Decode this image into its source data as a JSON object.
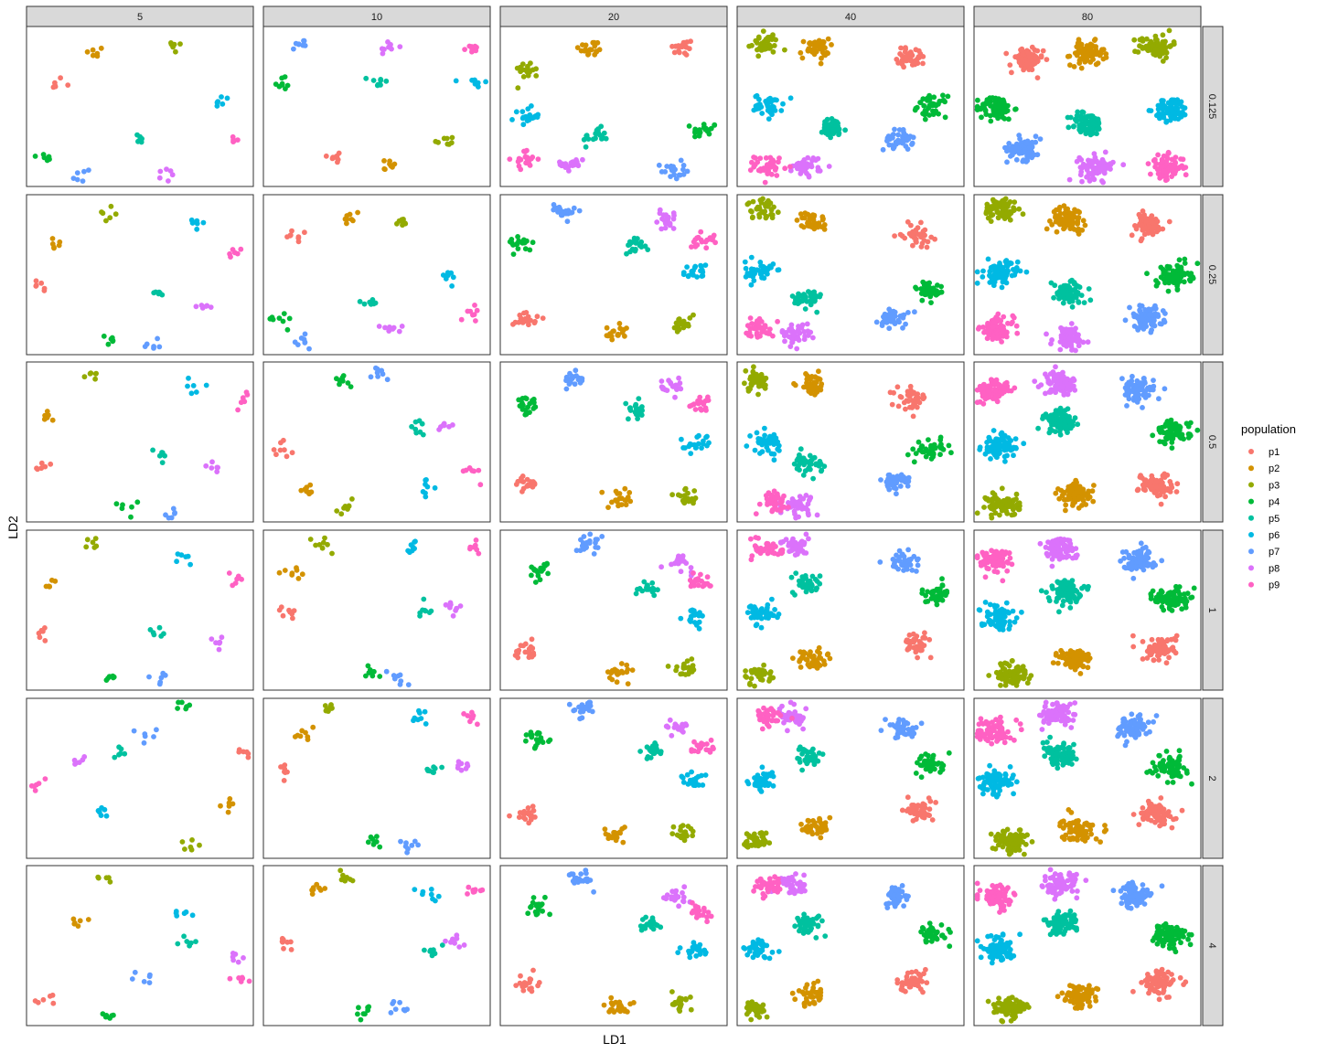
{
  "chart_data": {
    "type": "scatter",
    "facet_columns": [
      "5",
      "10",
      "20",
      "40",
      "80"
    ],
    "facet_rows": [
      "0.125",
      "0.25",
      "0.5",
      "1",
      "2",
      "4"
    ],
    "xlabel": "LD1",
    "ylabel": "LD2",
    "legend": {
      "title": "population",
      "position": "right",
      "entries": [
        "p1",
        "p2",
        "p3",
        "p4",
        "p5",
        "p6",
        "p7",
        "p8",
        "p9"
      ]
    },
    "colors": {
      "p1": "#F8766D",
      "p2": "#D39200",
      "p3": "#93AA00",
      "p4": "#00BA38",
      "p5": "#00C19F",
      "p6": "#00B9E3",
      "p7": "#619CFF",
      "p8": "#DB72FB",
      "p9": "#FF61C3"
    },
    "xlim": [
      0,
      1
    ],
    "ylim": [
      0,
      1
    ],
    "grid": false,
    "cluster_centers": [
      [
        {
          "p1": [
            0.12,
            0.65
          ],
          "p2": [
            0.3,
            0.83
          ],
          "p3": [
            0.65,
            0.88
          ],
          "p4": [
            0.08,
            0.18
          ],
          "p5": [
            0.5,
            0.29
          ],
          "p6": [
            0.86,
            0.53
          ],
          "p7": [
            0.24,
            0.07
          ],
          "p8": [
            0.62,
            0.07
          ],
          "p9": [
            0.94,
            0.28
          ]
        },
        {
          "p1": [
            0.32,
            0.19
          ],
          "p2": [
            0.55,
            0.13
          ],
          "p3": [
            0.8,
            0.29
          ],
          "p4": [
            0.08,
            0.65
          ],
          "p5": [
            0.51,
            0.65
          ],
          "p6": [
            0.94,
            0.65
          ],
          "p7": [
            0.16,
            0.89
          ],
          "p8": [
            0.55,
            0.87
          ],
          "p9": [
            0.92,
            0.86
          ]
        },
        {
          "p1": [
            0.8,
            0.87
          ],
          "p2": [
            0.4,
            0.86
          ],
          "p3": [
            0.12,
            0.73
          ],
          "p4": [
            0.9,
            0.35
          ],
          "p5": [
            0.42,
            0.31
          ],
          "p6": [
            0.12,
            0.44
          ],
          "p7": [
            0.76,
            0.1
          ],
          "p8": [
            0.32,
            0.14
          ],
          "p9": [
            0.11,
            0.17
          ]
        },
        {
          "p1": [
            0.77,
            0.81
          ],
          "p2": [
            0.34,
            0.86
          ],
          "p3": [
            0.12,
            0.89
          ],
          "p4": [
            0.86,
            0.5
          ],
          "p5": [
            0.42,
            0.36
          ],
          "p6": [
            0.14,
            0.51
          ],
          "p7": [
            0.71,
            0.29
          ],
          "p8": [
            0.31,
            0.13
          ],
          "p9": [
            0.14,
            0.13
          ]
        },
        {
          "p1": [
            0.23,
            0.79
          ],
          "p2": [
            0.5,
            0.83
          ],
          "p3": [
            0.8,
            0.88
          ],
          "p4": [
            0.1,
            0.49
          ],
          "p5": [
            0.5,
            0.39
          ],
          "p6": [
            0.87,
            0.48
          ],
          "p7": [
            0.22,
            0.24
          ],
          "p8": [
            0.54,
            0.12
          ],
          "p9": [
            0.85,
            0.12
          ]
        }
      ],
      [
        {
          "p1": [
            0.07,
            0.42
          ],
          "p2": [
            0.12,
            0.71
          ],
          "p3": [
            0.36,
            0.89
          ],
          "p4": [
            0.37,
            0.08
          ],
          "p5": [
            0.57,
            0.38
          ],
          "p6": [
            0.74,
            0.81
          ],
          "p7": [
            0.56,
            0.06
          ],
          "p8": [
            0.78,
            0.3
          ],
          "p9": [
            0.93,
            0.65
          ]
        },
        {
          "p1": [
            0.15,
            0.74
          ],
          "p2": [
            0.38,
            0.86
          ],
          "p3": [
            0.6,
            0.84
          ],
          "p4": [
            0.06,
            0.22
          ],
          "p5": [
            0.48,
            0.33
          ],
          "p6": [
            0.81,
            0.48
          ],
          "p7": [
            0.17,
            0.07
          ],
          "p8": [
            0.56,
            0.17
          ],
          "p9": [
            0.94,
            0.26
          ]
        },
        {
          "p1": [
            0.11,
            0.23
          ],
          "p2": [
            0.51,
            0.13
          ],
          "p3": [
            0.81,
            0.18
          ],
          "p4": [
            0.09,
            0.7
          ],
          "p5": [
            0.6,
            0.69
          ],
          "p6": [
            0.86,
            0.51
          ],
          "p7": [
            0.28,
            0.9
          ],
          "p8": [
            0.73,
            0.84
          ],
          "p9": [
            0.89,
            0.72
          ]
        },
        {
          "p1": [
            0.79,
            0.75
          ],
          "p2": [
            0.33,
            0.83
          ],
          "p3": [
            0.11,
            0.91
          ],
          "p4": [
            0.85,
            0.4
          ],
          "p5": [
            0.31,
            0.35
          ],
          "p6": [
            0.1,
            0.52
          ],
          "p7": [
            0.69,
            0.23
          ],
          "p8": [
            0.26,
            0.13
          ],
          "p9": [
            0.1,
            0.17
          ]
        },
        {
          "p1": [
            0.76,
            0.81
          ],
          "p2": [
            0.42,
            0.85
          ],
          "p3": [
            0.12,
            0.91
          ],
          "p4": [
            0.88,
            0.49
          ],
          "p5": [
            0.42,
            0.39
          ],
          "p6": [
            0.12,
            0.51
          ],
          "p7": [
            0.76,
            0.23
          ],
          "p8": [
            0.42,
            0.1
          ],
          "p9": [
            0.1,
            0.16
          ]
        }
      ],
      [
        {
          "p1": [
            0.07,
            0.34
          ],
          "p2": [
            0.09,
            0.65
          ],
          "p3": [
            0.29,
            0.91
          ],
          "p4": [
            0.44,
            0.1
          ],
          "p5": [
            0.59,
            0.42
          ],
          "p6": [
            0.74,
            0.85
          ],
          "p7": [
            0.63,
            0.06
          ],
          "p8": [
            0.84,
            0.35
          ],
          "p9": [
            0.95,
            0.76
          ]
        },
        {
          "p1": [
            0.08,
            0.45
          ],
          "p2": [
            0.19,
            0.19
          ],
          "p3": [
            0.35,
            0.08
          ],
          "p4": [
            0.35,
            0.88
          ],
          "p5": [
            0.67,
            0.59
          ],
          "p6": [
            0.72,
            0.22
          ],
          "p7": [
            0.53,
            0.93
          ],
          "p8": [
            0.8,
            0.6
          ],
          "p9": [
            0.92,
            0.31
          ]
        },
        {
          "p1": [
            0.11,
            0.24
          ],
          "p2": [
            0.53,
            0.14
          ],
          "p3": [
            0.82,
            0.15
          ],
          "p4": [
            0.12,
            0.72
          ],
          "p5": [
            0.6,
            0.69
          ],
          "p6": [
            0.87,
            0.49
          ],
          "p7": [
            0.32,
            0.89
          ],
          "p8": [
            0.76,
            0.85
          ],
          "p9": [
            0.89,
            0.73
          ]
        },
        {
          "p1": [
            0.77,
            0.77
          ],
          "p2": [
            0.33,
            0.86
          ],
          "p3": [
            0.08,
            0.88
          ],
          "p4": [
            0.86,
            0.45
          ],
          "p5": [
            0.31,
            0.36
          ],
          "p6": [
            0.13,
            0.5
          ],
          "p7": [
            0.7,
            0.25
          ],
          "p8": [
            0.27,
            0.11
          ],
          "p9": [
            0.16,
            0.13
          ]
        },
        {
          "p1": [
            0.8,
            0.23
          ],
          "p2": [
            0.45,
            0.17
          ],
          "p3": [
            0.13,
            0.11
          ],
          "p4": [
            0.88,
            0.56
          ],
          "p5": [
            0.38,
            0.63
          ],
          "p6": [
            0.11,
            0.47
          ],
          "p7": [
            0.72,
            0.82
          ],
          "p8": [
            0.38,
            0.87
          ],
          "p9": [
            0.09,
            0.82
          ]
        }
      ],
      [
        {
          "p1": [
            0.07,
            0.36
          ],
          "p2": [
            0.11,
            0.65
          ],
          "p3": [
            0.29,
            0.91
          ],
          "p4": [
            0.37,
            0.09
          ],
          "p5": [
            0.58,
            0.37
          ],
          "p6": [
            0.68,
            0.82
          ],
          "p7": [
            0.58,
            0.07
          ],
          "p8": [
            0.84,
            0.31
          ],
          "p9": [
            0.94,
            0.7
          ]
        },
        {
          "p1": [
            0.1,
            0.49
          ],
          "p2": [
            0.13,
            0.74
          ],
          "p3": [
            0.25,
            0.91
          ],
          "p4": [
            0.47,
            0.11
          ],
          "p5": [
            0.71,
            0.5
          ],
          "p6": [
            0.66,
            0.89
          ],
          "p7": [
            0.6,
            0.08
          ],
          "p8": [
            0.83,
            0.51
          ],
          "p9": [
            0.92,
            0.88
          ]
        },
        {
          "p1": [
            0.12,
            0.25
          ],
          "p2": [
            0.52,
            0.12
          ],
          "p3": [
            0.82,
            0.14
          ],
          "p4": [
            0.18,
            0.75
          ],
          "p5": [
            0.66,
            0.64
          ],
          "p6": [
            0.86,
            0.46
          ],
          "p7": [
            0.39,
            0.92
          ],
          "p8": [
            0.79,
            0.79
          ],
          "p9": [
            0.88,
            0.68
          ]
        },
        {
          "p1": [
            0.79,
            0.29
          ],
          "p2": [
            0.33,
            0.19
          ],
          "p3": [
            0.09,
            0.1
          ],
          "p4": [
            0.88,
            0.59
          ],
          "p5": [
            0.31,
            0.67
          ],
          "p6": [
            0.11,
            0.48
          ],
          "p7": [
            0.73,
            0.8
          ],
          "p8": [
            0.25,
            0.9
          ],
          "p9": [
            0.14,
            0.88
          ]
        },
        {
          "p1": [
            0.82,
            0.26
          ],
          "p2": [
            0.45,
            0.19
          ],
          "p3": [
            0.17,
            0.1
          ],
          "p4": [
            0.87,
            0.57
          ],
          "p5": [
            0.4,
            0.62
          ],
          "p6": [
            0.1,
            0.46
          ],
          "p7": [
            0.73,
            0.81
          ],
          "p8": [
            0.37,
            0.89
          ],
          "p9": [
            0.09,
            0.81
          ]
        }
      ],
      [
        {
          "p1": [
            0.95,
            0.66
          ],
          "p2": [
            0.9,
            0.35
          ],
          "p3": [
            0.72,
            0.09
          ],
          "p4": [
            0.7,
            0.95
          ],
          "p5": [
            0.41,
            0.66
          ],
          "p6": [
            0.34,
            0.3
          ],
          "p7": [
            0.53,
            0.77
          ],
          "p8": [
            0.22,
            0.6
          ],
          "p9": [
            0.05,
            0.46
          ]
        },
        {
          "p1": [
            0.1,
            0.54
          ],
          "p2": [
            0.17,
            0.78
          ],
          "p3": [
            0.3,
            0.94
          ],
          "p4": [
            0.48,
            0.11
          ],
          "p5": [
            0.74,
            0.55
          ],
          "p6": [
            0.69,
            0.89
          ],
          "p7": [
            0.64,
            0.08
          ],
          "p8": [
            0.86,
            0.57
          ],
          "p9": [
            0.92,
            0.89
          ]
        },
        {
          "p1": [
            0.12,
            0.27
          ],
          "p2": [
            0.51,
            0.15
          ],
          "p3": [
            0.81,
            0.15
          ],
          "p4": [
            0.17,
            0.74
          ],
          "p5": [
            0.67,
            0.67
          ],
          "p6": [
            0.85,
            0.49
          ],
          "p7": [
            0.36,
            0.93
          ],
          "p8": [
            0.78,
            0.82
          ],
          "p9": [
            0.89,
            0.69
          ]
        },
        {
          "p1": [
            0.8,
            0.3
          ],
          "p2": [
            0.35,
            0.2
          ],
          "p3": [
            0.09,
            0.11
          ],
          "p4": [
            0.86,
            0.59
          ],
          "p5": [
            0.31,
            0.64
          ],
          "p6": [
            0.11,
            0.48
          ],
          "p7": [
            0.73,
            0.81
          ],
          "p8": [
            0.25,
            0.88
          ],
          "p9": [
            0.14,
            0.88
          ]
        },
        {
          "p1": [
            0.8,
            0.28
          ],
          "p2": [
            0.46,
            0.18
          ],
          "p3": [
            0.16,
            0.11
          ],
          "p4": [
            0.86,
            0.57
          ],
          "p5": [
            0.38,
            0.64
          ],
          "p6": [
            0.1,
            0.47
          ],
          "p7": [
            0.7,
            0.82
          ],
          "p8": [
            0.37,
            0.9
          ],
          "p9": [
            0.09,
            0.8
          ]
        }
      ],
      [
        {
          "p1": [
            0.08,
            0.17
          ],
          "p2": [
            0.21,
            0.65
          ],
          "p3": [
            0.33,
            0.92
          ],
          "p4": [
            0.37,
            0.07
          ],
          "p5": [
            0.72,
            0.52
          ],
          "p6": [
            0.68,
            0.71
          ],
          "p7": [
            0.54,
            0.29
          ],
          "p8": [
            0.92,
            0.43
          ],
          "p9": [
            0.94,
            0.3
          ]
        },
        {
          "p1": [
            0.1,
            0.52
          ],
          "p2": [
            0.23,
            0.84
          ],
          "p3": [
            0.37,
            0.92
          ],
          "p4": [
            0.45,
            0.11
          ],
          "p5": [
            0.75,
            0.47
          ],
          "p6": [
            0.73,
            0.83
          ],
          "p7": [
            0.6,
            0.1
          ],
          "p8": [
            0.84,
            0.52
          ],
          "p9": [
            0.92,
            0.84
          ]
        },
        {
          "p1": [
            0.12,
            0.26
          ],
          "p2": [
            0.52,
            0.12
          ],
          "p3": [
            0.8,
            0.15
          ],
          "p4": [
            0.16,
            0.73
          ],
          "p5": [
            0.65,
            0.64
          ],
          "p6": [
            0.86,
            0.47
          ],
          "p7": [
            0.36,
            0.92
          ],
          "p8": [
            0.78,
            0.8
          ],
          "p9": [
            0.88,
            0.71
          ]
        },
        {
          "p1": [
            0.78,
            0.28
          ],
          "p2": [
            0.33,
            0.19
          ],
          "p3": [
            0.08,
            0.11
          ],
          "p4": [
            0.87,
            0.57
          ],
          "p5": [
            0.31,
            0.64
          ],
          "p6": [
            0.1,
            0.47
          ],
          "p7": [
            0.7,
            0.8
          ],
          "p8": [
            0.25,
            0.89
          ],
          "p9": [
            0.14,
            0.87
          ]
        },
        {
          "p1": [
            0.82,
            0.27
          ],
          "p2": [
            0.47,
            0.18
          ],
          "p3": [
            0.16,
            0.11
          ],
          "p4": [
            0.86,
            0.57
          ],
          "p5": [
            0.38,
            0.64
          ],
          "p6": [
            0.1,
            0.48
          ],
          "p7": [
            0.71,
            0.81
          ],
          "p8": [
            0.38,
            0.88
          ],
          "p9": [
            0.1,
            0.8
          ]
        }
      ]
    ],
    "points_per_cluster_by_column": [
      6,
      8,
      20,
      40,
      80
    ],
    "cluster_spread_by_column": [
      0.028,
      0.028,
      0.034,
      0.04,
      0.046
    ]
  }
}
